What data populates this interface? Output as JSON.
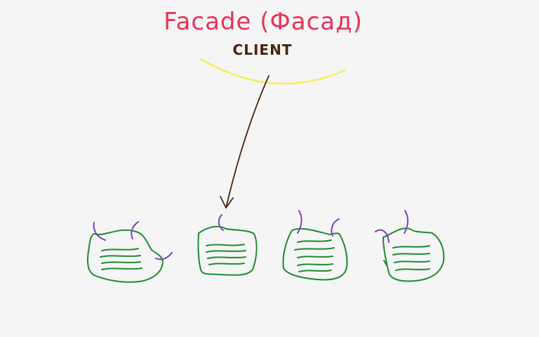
{
  "diagram": {
    "title": "Facade (Фасад)",
    "client_label": "CLIENT",
    "subsystems": [
      {
        "id": "subsystem-1",
        "lines": 4
      },
      {
        "id": "subsystem-2",
        "lines": 4
      },
      {
        "id": "subsystem-3",
        "lines": 4
      },
      {
        "id": "subsystem-4",
        "lines": 4
      }
    ]
  },
  "colors": {
    "background": "#f5f5f5",
    "title": "#e8335a",
    "client": "#4a2410",
    "facade_arc": "#f3ef4a",
    "arrow": "#4a2410",
    "subsystem": "#1f8a2f",
    "connector": "#7a3fc9"
  }
}
